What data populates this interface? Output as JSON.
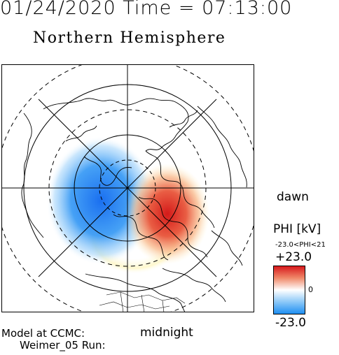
{
  "header": {
    "datetime": "01/24/2020 Time = 07:13:00",
    "hemisphere": "Northern Hemisphere"
  },
  "map": {
    "labels": {
      "right": "dawn",
      "bottom": "midnight"
    },
    "projection": "polar-stereographic",
    "latitude_circles_solid": 3,
    "latitude_circles_dashed": 3,
    "potential_cells": [
      {
        "polarity": "negative",
        "color": "#2f8cf0",
        "location": "left (dusk-side)"
      },
      {
        "polarity": "positive",
        "color": "#d62020",
        "location": "right-lower (dawn-side)"
      }
    ]
  },
  "colorbar": {
    "title": "PHI [kV]",
    "range_text": "-23.0<PHI<21",
    "max": "+23.0",
    "mid": "0",
    "min": "-23.0",
    "colors": {
      "high": "#d7191c",
      "mid": "#ffffff",
      "low": "#1f8ff2"
    }
  },
  "footer": {
    "model": "Model at CCMC:",
    "run": "Weimer_05 Run:"
  }
}
